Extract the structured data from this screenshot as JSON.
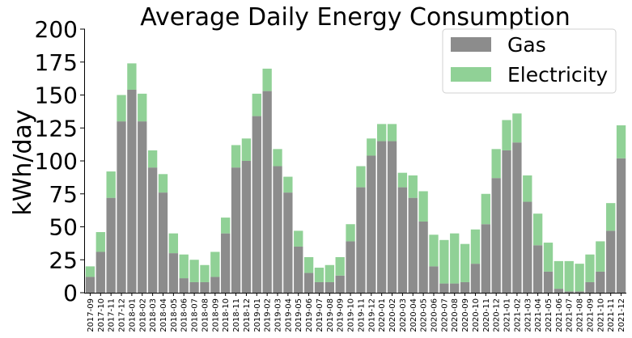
{
  "chart_data": {
    "type": "bar",
    "stacked": true,
    "title": "Average Daily Energy Consumption",
    "xlabel": "",
    "ylabel": "kWh/day",
    "ylim": [
      0,
      200
    ],
    "yticks": [
      0,
      25,
      50,
      75,
      100,
      125,
      150,
      175,
      200
    ],
    "grid": false,
    "legend_position": "top-right",
    "categories": [
      "2017-09",
      "2017-10",
      "2017-11",
      "2017-12",
      "2018-01",
      "2018-02",
      "2018-03",
      "2018-04",
      "2018-05",
      "2018-06",
      "2018-07",
      "2018-08",
      "2018-09",
      "2018-10",
      "2018-11",
      "2018-12",
      "2019-01",
      "2019-02",
      "2019-03",
      "2019-04",
      "2019-05",
      "2019-06",
      "2019-07",
      "2019-08",
      "2019-09",
      "2019-10",
      "2019-11",
      "2019-12",
      "2020-01",
      "2020-02",
      "2020-03",
      "2020-04",
      "2020-05",
      "2020-06",
      "2020-07",
      "2020-08",
      "2020-09",
      "2020-10",
      "2020-11",
      "2020-12",
      "2021-01",
      "2021-02",
      "2021-03",
      "2021-04",
      "2021-05",
      "2021-06",
      "2021-07",
      "2021-08",
      "2021-09",
      "2021-10",
      "2021-11",
      "2021-12"
    ],
    "series": [
      {
        "name": "Gas",
        "color": "#8c8c8c",
        "values": [
          12,
          31,
          72,
          130,
          154,
          130,
          95,
          76,
          30,
          11,
          8,
          8,
          12,
          45,
          95,
          100,
          134,
          153,
          96,
          76,
          35,
          15,
          8,
          8,
          13,
          39,
          80,
          104,
          115,
          115,
          80,
          72,
          54,
          20,
          7,
          7,
          8,
          22,
          52,
          87,
          108,
          114,
          69,
          36,
          16,
          3,
          1,
          1,
          8,
          16,
          47,
          102
        ]
      },
      {
        "name": "Electricity",
        "color": "#90d196",
        "values": [
          8,
          15,
          20,
          20,
          20,
          21,
          13,
          14,
          15,
          18,
          17,
          13,
          19,
          12,
          17,
          17,
          17,
          17,
          13,
          12,
          12,
          12,
          11,
          13,
          14,
          13,
          16,
          13,
          13,
          13,
          11,
          17,
          23,
          24,
          33,
          38,
          29,
          26,
          23,
          22,
          23,
          22,
          20,
          24,
          22,
          21,
          23,
          21,
          21,
          23,
          21,
          25
        ]
      }
    ]
  }
}
